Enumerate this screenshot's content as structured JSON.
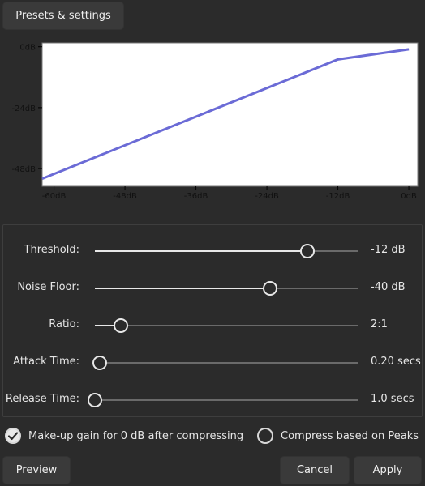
{
  "toolbar": {
    "presets_label": "Presets & settings"
  },
  "chart_data": {
    "type": "line",
    "title": "",
    "x_ticks": [
      "-60dB",
      "-48dB",
      "-36dB",
      "-24dB",
      "-12dB",
      "0dB"
    ],
    "y_ticks": [
      "0dB",
      "-24dB",
      "-48dB"
    ],
    "xlim": [
      -62,
      1.5
    ],
    "ylim": [
      -55,
      1.5
    ],
    "series": [
      {
        "x": [
          -62,
          -12,
          0
        ],
        "y": [
          -52,
          -5,
          -1
        ]
      }
    ],
    "line_color": "#6b6bd6",
    "grid": false
  },
  "controls": [
    {
      "label": "Threshold:",
      "value_text": "-12 dB",
      "level": 0.81
    },
    {
      "label": "Noise Floor:",
      "value_text": "-40 dB",
      "level": 0.667
    },
    {
      "label": "Ratio:",
      "value_text": "2:1",
      "level": 0.1
    },
    {
      "label": "Attack Time:",
      "value_text": "0.20 secs",
      "level": 0.018
    },
    {
      "label": "Release Time:",
      "value_text": "1.0 secs",
      "level": 0.0
    }
  ],
  "options": {
    "makeup_gain": {
      "label": "Make-up gain for 0 dB after compressing",
      "checked": true
    },
    "peaks": {
      "label": "Compress based on Peaks",
      "checked": false
    }
  },
  "footer": {
    "preview_label": "Preview",
    "cancel_label": "Cancel",
    "apply_label": "Apply"
  }
}
